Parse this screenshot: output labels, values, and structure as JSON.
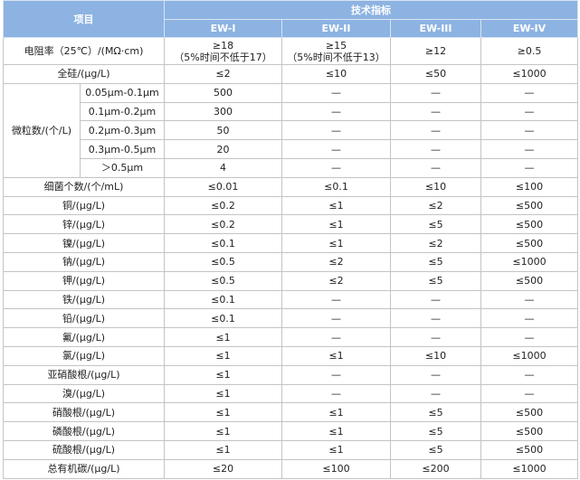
{
  "header": {
    "item": "项目",
    "spec": "技术指标",
    "grades": [
      "EW-I",
      "EW-II",
      "EW-III",
      "EW-IV"
    ]
  },
  "colors": {
    "header_bg": "#8db3e2",
    "header_text": "#ffffff",
    "border": "#c4c4c4"
  },
  "resistivity": {
    "label": "电阻率（25℃）/(MΩ·cm)",
    "values": [
      {
        "main": "≥18",
        "note": "（5%时间不低于17）"
      },
      {
        "main": "≥15",
        "note": "（5%时间不低于13）"
      },
      {
        "main": "≥12",
        "note": ""
      },
      {
        "main": "≥0.5",
        "note": ""
      }
    ]
  },
  "silicon": {
    "label": "全硅/(μg/L)",
    "values": [
      "≤2",
      "≤10",
      "≤50",
      "≤1000"
    ]
  },
  "particles": {
    "label": "微粒数/(个/L)",
    "rows": [
      {
        "range": "0.05μm-0.1μm",
        "values": [
          "500",
          "—",
          "—",
          "—"
        ]
      },
      {
        "range": "0.1μm-0.2μm",
        "values": [
          "300",
          "—",
          "—",
          "—"
        ]
      },
      {
        "range": "0.2μm-0.3μm",
        "values": [
          "50",
          "—",
          "—",
          "—"
        ]
      },
      {
        "range": "0.3μm-0.5μm",
        "values": [
          "20",
          "—",
          "—",
          "—"
        ]
      },
      {
        "range": "＞0.5μm",
        "values": [
          "4",
          "—",
          "—",
          "—"
        ]
      }
    ]
  },
  "rows": [
    {
      "label": "细菌个数/(个/mL)",
      "values": [
        "≤0.01",
        "≤0.1",
        "≤10",
        "≤100"
      ]
    },
    {
      "label": "铜/(μg/L)",
      "values": [
        "≤0.2",
        "≤1",
        "≤2",
        "≤500"
      ]
    },
    {
      "label": "锌/(μg/L)",
      "values": [
        "≤0.2",
        "≤1",
        "≤5",
        "≤500"
      ]
    },
    {
      "label": "镍/(μg/L)",
      "values": [
        "≤0.1",
        "≤1",
        "≤2",
        "≤500"
      ]
    },
    {
      "label": "钠/(μg/L)",
      "values": [
        "≤0.5",
        "≤2",
        "≤5",
        "≤1000"
      ]
    },
    {
      "label": "钾/(μg/L)",
      "values": [
        "≤0.5",
        "≤2",
        "≤5",
        "≤500"
      ]
    },
    {
      "label": "铁/(μg/L)",
      "values": [
        "≤0.1",
        "—",
        "—",
        "—"
      ]
    },
    {
      "label": "铅/(μg/L)",
      "values": [
        "≤0.1",
        "—",
        "—",
        "—"
      ]
    },
    {
      "label": "氟/(μg/L)",
      "values": [
        "≤1",
        "—",
        "—",
        "—"
      ]
    },
    {
      "label": "氯/(μg/L)",
      "values": [
        "≤1",
        "≤1",
        "≤10",
        "≤1000"
      ]
    },
    {
      "label": "亚硝酸根/(μg/L)",
      "values": [
        "≤1",
        "—",
        "—",
        "—"
      ]
    },
    {
      "label": "溴/(μg/L)",
      "values": [
        "≤1",
        "—",
        "—",
        "—"
      ]
    },
    {
      "label": "硝酸根/(μg/L)",
      "values": [
        "≤1",
        "≤1",
        "≤5",
        "≤500"
      ]
    },
    {
      "label": "磷酸根/(μg/L)",
      "values": [
        "≤1",
        "≤1",
        "≤5",
        "≤500"
      ]
    },
    {
      "label": "硫酸根/(μg/L)",
      "values": [
        "≤1",
        "≤1",
        "≤5",
        "≤500"
      ]
    },
    {
      "label": "总有机碳/(μg/L)",
      "values": [
        "≤20",
        "≤100",
        "≤200",
        "≤1000"
      ]
    }
  ]
}
